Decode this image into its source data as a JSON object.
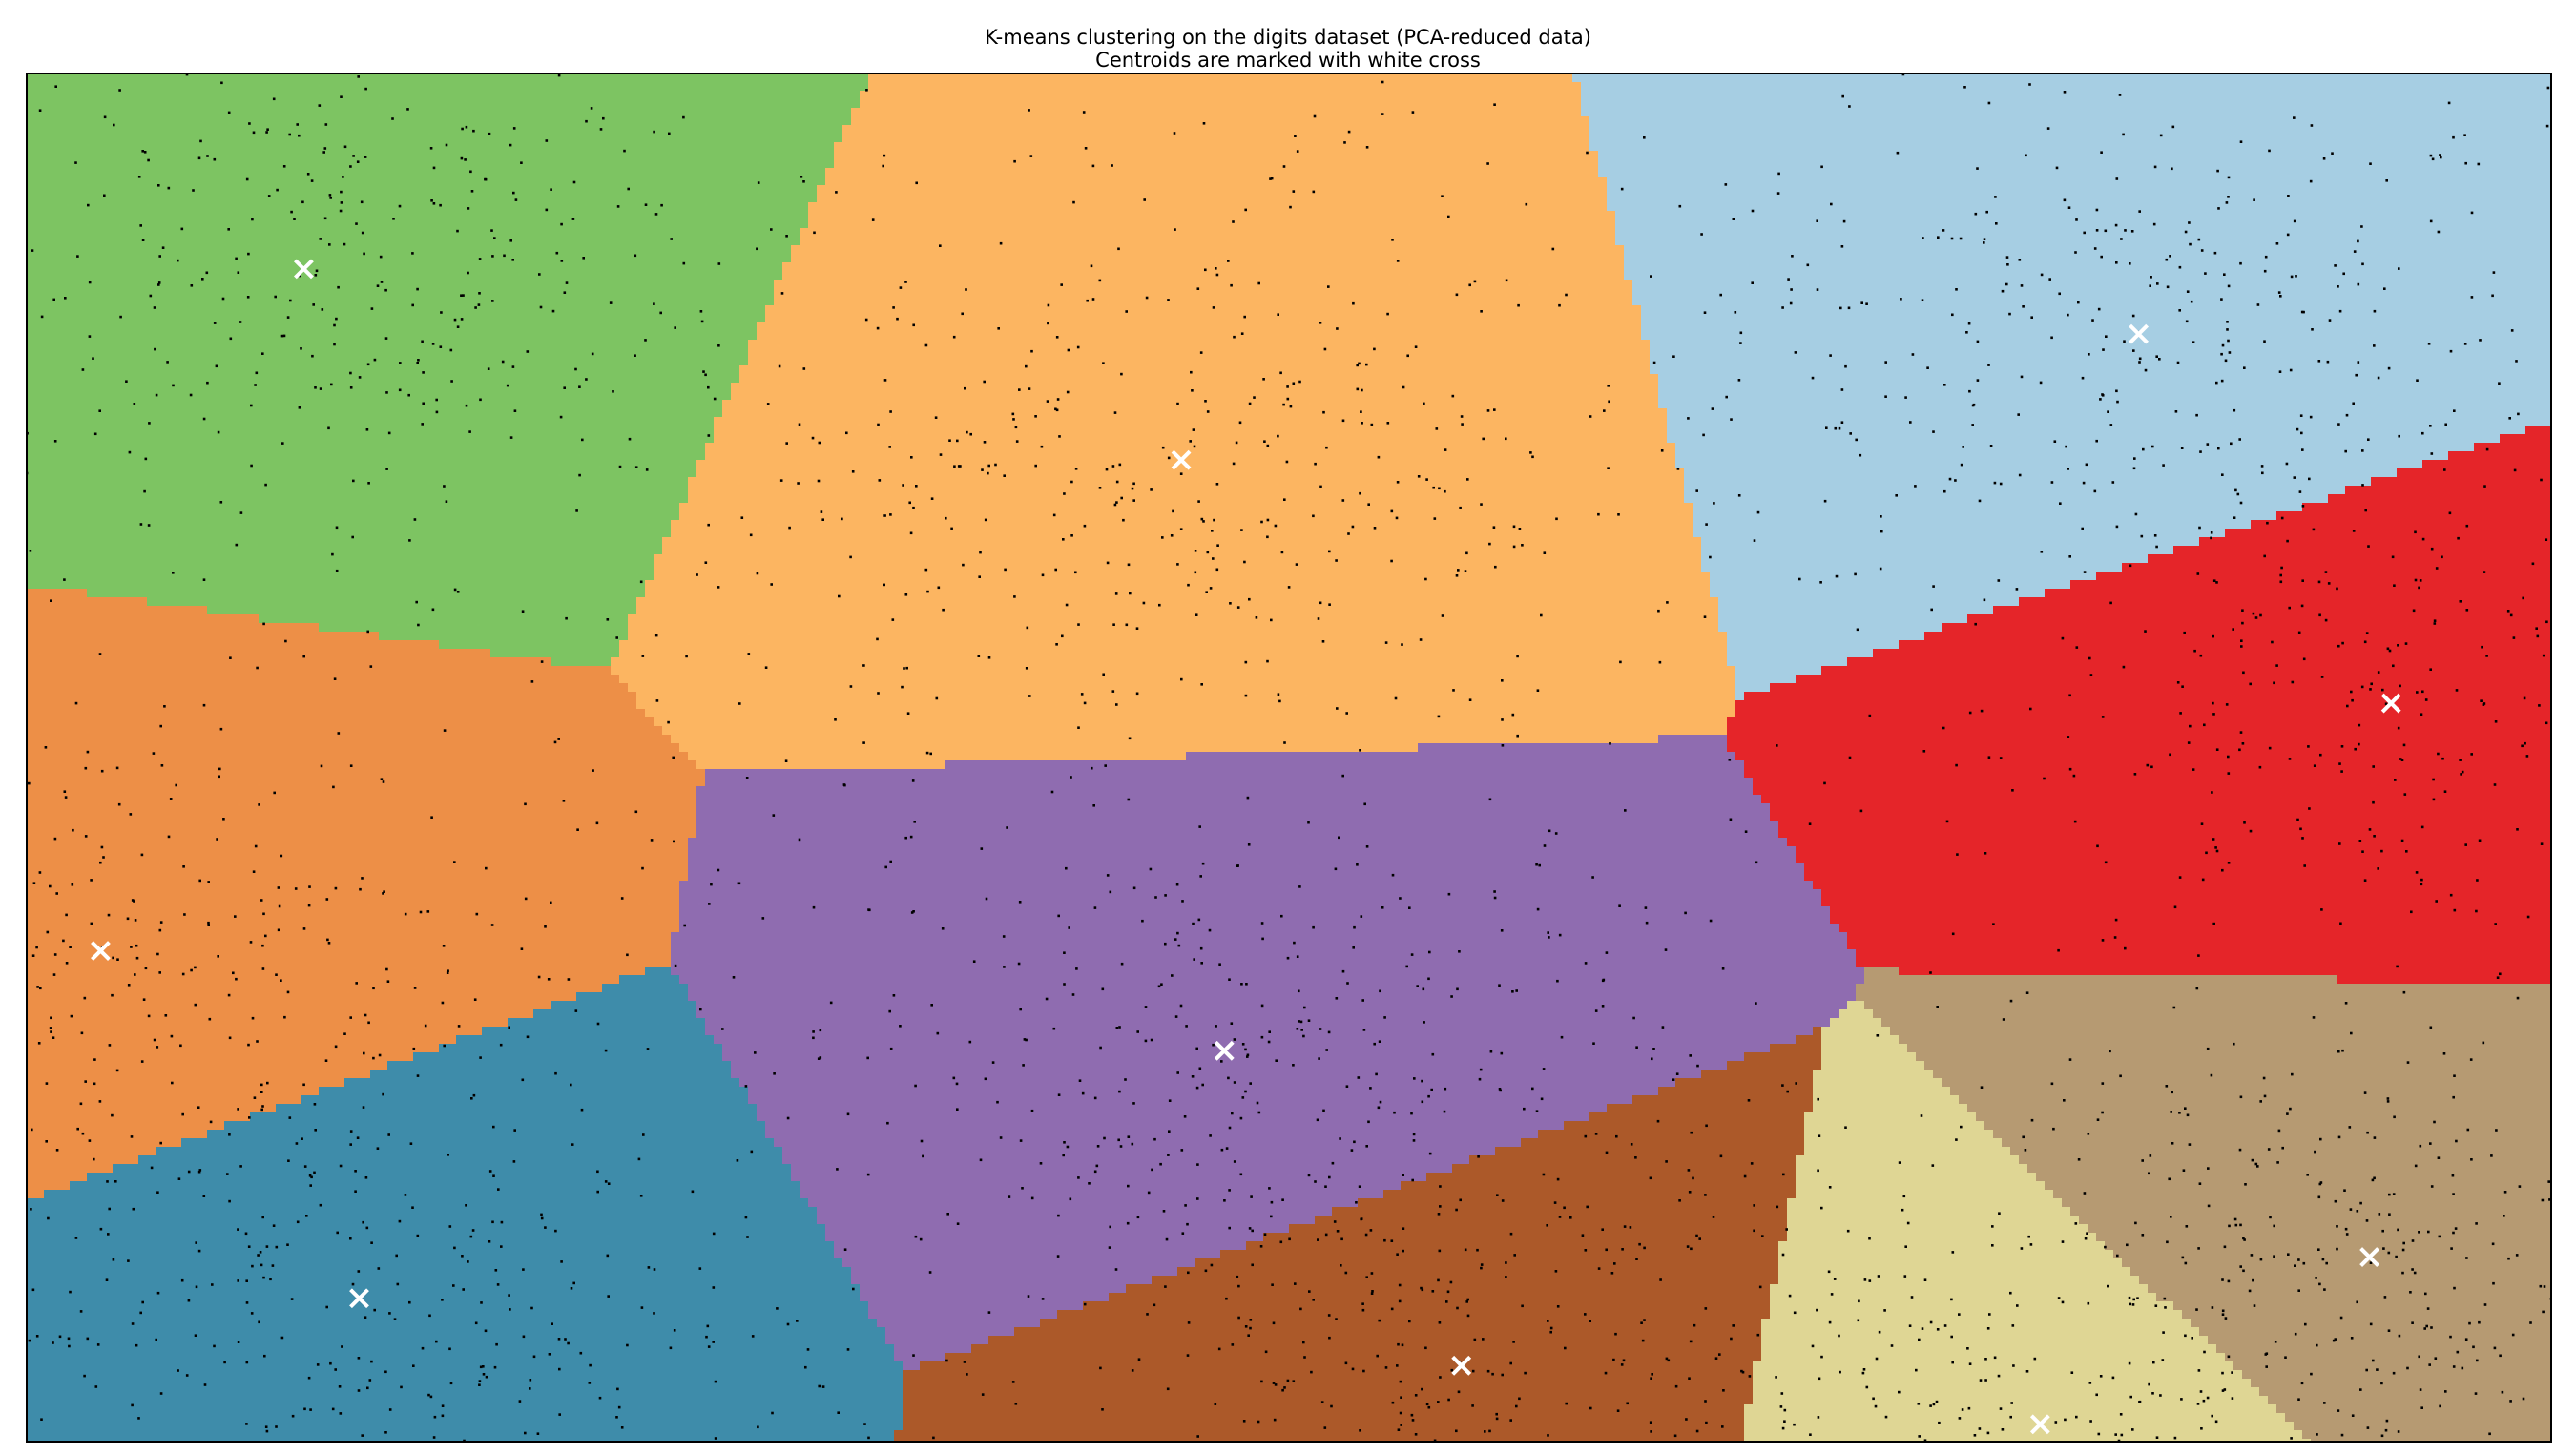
{
  "chart_data": {
    "type": "scatter",
    "title": "K-means clustering on the digits dataset (PCA-reduced data)",
    "subtitle": "Centroids are marked with white cross",
    "xlabel": "",
    "ylabel": "",
    "xlim": [
      -40,
      42
    ],
    "ylim": [
      -30,
      33
    ],
    "xticks": [],
    "yticks": [],
    "grid": false,
    "legend": "none",
    "colors": {
      "background_regions": [
        "#a6cee3",
        "#e52529",
        "#b69a72",
        "#dfd694",
        "#ac5929",
        "#8f6cb0",
        "#3e8caa",
        "#ed8f47",
        "#7dc462",
        "#fcb561"
      ],
      "points": "#000000",
      "centroid_marker": "#ffffff",
      "frame": "#000000"
    },
    "clusters": [
      {
        "id": 0,
        "region_color": "#a6cee3",
        "centroid": [
          28.6,
          21.0
        ]
      },
      {
        "id": 1,
        "region_color": "#e52529",
        "centroid": [
          36.8,
          4.0
        ]
      },
      {
        "id": 2,
        "region_color": "#b69a72",
        "centroid": [
          36.1,
          -21.5
        ]
      },
      {
        "id": 3,
        "region_color": "#dfd694",
        "centroid": [
          25.4,
          -29.2
        ]
      },
      {
        "id": 4,
        "region_color": "#ac5929",
        "centroid": [
          6.6,
          -26.5
        ]
      },
      {
        "id": 5,
        "region_color": "#8f6cb0",
        "centroid": [
          -1.1,
          -12.0
        ]
      },
      {
        "id": 6,
        "region_color": "#3e8caa",
        "centroid": [
          -29.2,
          -23.4
        ]
      },
      {
        "id": 7,
        "region_color": "#ed8f47",
        "centroid": [
          -37.6,
          -7.4
        ]
      },
      {
        "id": 8,
        "region_color": "#7dc462",
        "centroid": [
          -31.0,
          24.0
        ]
      },
      {
        "id": 9,
        "region_color": "#fcb561",
        "centroid": [
          -2.5,
          15.2
        ]
      }
    ]
  }
}
